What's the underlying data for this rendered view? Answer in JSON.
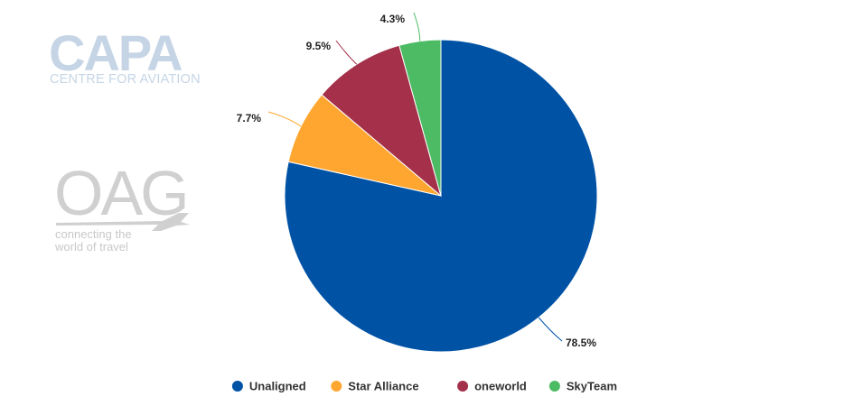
{
  "watermarks": {
    "capa_logo": "CAPA",
    "capa_subtitle": "CENTRE FOR AVIATION",
    "oag_logo": "OAG",
    "oag_tagline_line1": "connecting the",
    "oag_tagline_line2": "world of travel"
  },
  "chart_data": {
    "type": "pie",
    "title": "",
    "slices": [
      {
        "name": "Unaligned",
        "value": 78.5,
        "label": "78.5%",
        "color": "#0052a5"
      },
      {
        "name": "Star Alliance",
        "value": 7.7,
        "label": "7.7%",
        "color": "#ffa630"
      },
      {
        "name": "oneworld",
        "value": 9.5,
        "label": "9.5%",
        "color": "#a4304a"
      },
      {
        "name": "SkyTeam",
        "value": 4.3,
        "label": "4.3%",
        "color": "#4dbb63"
      }
    ],
    "legend_position": "bottom-center",
    "start_angle": "12 o'clock, clockwise"
  }
}
